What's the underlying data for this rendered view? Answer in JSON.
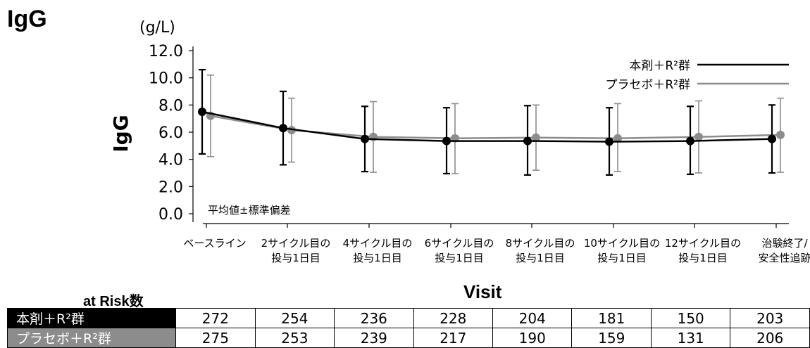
{
  "page_title": "IgG",
  "chart_data": {
    "type": "line",
    "title": "",
    "unit_label": "(g/L)",
    "ylabel": "IgG",
    "xlabel": "Visit",
    "ylim": [
      0,
      12
    ],
    "yticks": [
      "0.0",
      "2.0",
      "4.0",
      "6.0",
      "8.0",
      "10.0",
      "12.0"
    ],
    "categories": [
      [
        "ベースライン"
      ],
      [
        "2サイクル目の",
        "投与1日目"
      ],
      [
        "4サイクル目の",
        "投与1日目"
      ],
      [
        "6サイクル目の",
        "投与1日目"
      ],
      [
        "8サイクル目の",
        "投与1日目"
      ],
      [
        "10サイクル目の",
        "投与1日目"
      ],
      [
        "12サイクル目の",
        "投与1日目"
      ],
      [
        "治験終了/",
        "安全性追跡"
      ]
    ],
    "annotation": "平均値±標準偏差",
    "legend_position": "top-right",
    "series": [
      {
        "name": "本剤＋R²群",
        "color": "#000000",
        "values": [
          7.5,
          6.3,
          5.5,
          5.35,
          5.35,
          5.3,
          5.35,
          5.5
        ],
        "sd_upper": [
          10.6,
          9.0,
          7.9,
          7.8,
          7.95,
          7.8,
          7.9,
          8.0
        ],
        "sd_lower": [
          4.4,
          3.6,
          3.1,
          2.95,
          2.85,
          2.85,
          2.9,
          3.0
        ]
      },
      {
        "name": "プラセボ＋R²群",
        "color": "#8c8c8c",
        "values": [
          7.2,
          6.15,
          5.65,
          5.55,
          5.6,
          5.55,
          5.65,
          5.8
        ],
        "sd_upper": [
          10.2,
          8.5,
          8.25,
          8.1,
          8.0,
          8.1,
          8.3,
          8.5
        ],
        "sd_lower": [
          4.2,
          3.8,
          3.05,
          2.95,
          3.2,
          3.1,
          3.0,
          3.05
        ]
      }
    ]
  },
  "risk_table": {
    "title": "at Risk数",
    "rows": [
      {
        "label": "本剤＋R²群",
        "values": [
          "272",
          "254",
          "236",
          "228",
          "204",
          "181",
          "150",
          "203"
        ]
      },
      {
        "label": "プラセボ＋R²群",
        "values": [
          "275",
          "253",
          "239",
          "217",
          "190",
          "159",
          "131",
          "206"
        ]
      }
    ]
  }
}
